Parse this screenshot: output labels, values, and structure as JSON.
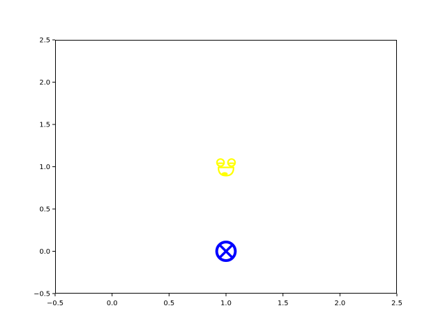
{
  "chart_data": {
    "type": "scatter",
    "title": "",
    "xlabel": "",
    "ylabel": "",
    "xlim": [
      -0.5,
      2.5
    ],
    "ylim": [
      -0.5,
      2.5
    ],
    "xticks": [
      -0.5,
      0.0,
      0.5,
      1.0,
      1.5,
      2.0,
      2.5
    ],
    "yticks": [
      -0.5,
      0.0,
      0.5,
      1.0,
      1.5,
      2.0,
      2.5
    ],
    "xtick_labels": [
      "−0.5",
      "0.0",
      "0.5",
      "1.0",
      "1.5",
      "2.0",
      "2.5"
    ],
    "ytick_labels": [
      "−0.5",
      "0.0",
      "0.5",
      "1.0",
      "1.5",
      "2.0",
      "2.5"
    ],
    "grid": false,
    "points": [
      {
        "x": 1.0,
        "y": 0.0,
        "marker": "circled-x",
        "color": "#0000ff"
      },
      {
        "x": 1.0,
        "y": 1.0,
        "marker": "laughing-face",
        "color": "#ffff00"
      }
    ]
  }
}
